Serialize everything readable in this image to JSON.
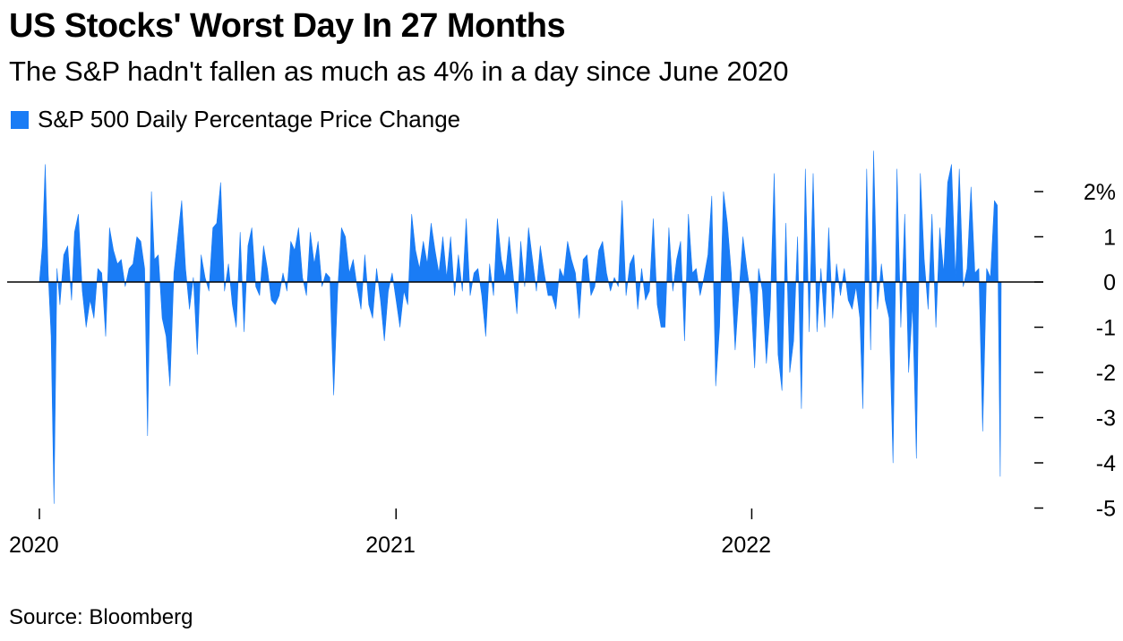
{
  "title": "US Stocks' Worst Day In 27 Months",
  "subtitle": "The S&P hadn't fallen as much as 4% in a day since June 2020",
  "source": "Source: Bloomberg",
  "colors": {
    "series": "#1a7cf5",
    "axis": "#000000"
  },
  "chart_data": {
    "type": "area",
    "title": "US Stocks' Worst Day In 27 Months",
    "subtitle": "The S&P hadn't fallen as much as 4% in a day since June 2020",
    "legend": [
      "S&P 500 Daily Percentage Price Change"
    ],
    "legend_position": "top-left",
    "grid": false,
    "y_axis_position": "right",
    "ylim": [
      -5,
      2.8
    ],
    "y_ticks": [
      2,
      1,
      0,
      -1,
      -2,
      -3,
      -4,
      -5
    ],
    "y_tick_labels": [
      "2%",
      "1",
      "0",
      "-1",
      "-2",
      "-3",
      "-4",
      "-5"
    ],
    "x_ticks": [
      "2020-01-01",
      "2021-01-01",
      "2022-01-01"
    ],
    "x_tick_labels": [
      "2020",
      "2021",
      "2022"
    ],
    "xlim": [
      "2020-01-01",
      "2022-09-14"
    ],
    "series": [
      {
        "name": "S&P 500 Daily Percentage Price Change",
        "points": [
          [
            "2020-01-01",
            0
          ],
          [
            "2020-01-04",
            0.8
          ],
          [
            "2020-01-07",
            2.6
          ],
          [
            "2020-01-10",
            0.2
          ],
          [
            "2020-01-13",
            -1.2
          ],
          [
            "2020-01-16",
            -4.9
          ],
          [
            "2020-01-19",
            0.3
          ],
          [
            "2020-01-22",
            -0.5
          ],
          [
            "2020-01-26",
            0.6
          ],
          [
            "2020-01-30",
            0.8
          ],
          [
            "2020-02-03",
            -0.4
          ],
          [
            "2020-02-06",
            1.1
          ],
          [
            "2020-02-10",
            1.5
          ],
          [
            "2020-02-14",
            -0.2
          ],
          [
            "2020-02-18",
            -1.0
          ],
          [
            "2020-02-22",
            -0.4
          ],
          [
            "2020-02-26",
            -0.8
          ],
          [
            "2020-03-01",
            0.3
          ],
          [
            "2020-03-05",
            0.2
          ],
          [
            "2020-03-09",
            -1.2
          ],
          [
            "2020-03-13",
            1.2
          ],
          [
            "2020-03-17",
            0.7
          ],
          [
            "2020-03-21",
            0.4
          ],
          [
            "2020-03-25",
            0.5
          ],
          [
            "2020-03-29",
            -0.1
          ],
          [
            "2020-04-02",
            0.3
          ],
          [
            "2020-04-06",
            0.4
          ],
          [
            "2020-04-10",
            1.0
          ],
          [
            "2020-04-14",
            0.9
          ],
          [
            "2020-04-18",
            0.3
          ],
          [
            "2020-04-21",
            -3.4
          ],
          [
            "2020-04-25",
            2.0
          ],
          [
            "2020-04-28",
            0.5
          ],
          [
            "2020-05-02",
            0.6
          ],
          [
            "2020-05-06",
            -0.8
          ],
          [
            "2020-05-10",
            -1.2
          ],
          [
            "2020-05-14",
            -2.3
          ],
          [
            "2020-05-18",
            0.2
          ],
          [
            "2020-05-22",
            1.0
          ],
          [
            "2020-05-26",
            1.8
          ],
          [
            "2020-05-30",
            0.3
          ],
          [
            "2020-06-03",
            -0.6
          ],
          [
            "2020-06-07",
            0.1
          ],
          [
            "2020-06-11",
            -1.6
          ],
          [
            "2020-06-15",
            0.6
          ],
          [
            "2020-06-19",
            0.1
          ],
          [
            "2020-06-23",
            -0.2
          ],
          [
            "2020-06-27",
            1.2
          ],
          [
            "2020-07-01",
            1.3
          ],
          [
            "2020-07-05",
            2.2
          ],
          [
            "2020-07-09",
            -0.2
          ],
          [
            "2020-07-13",
            0.4
          ],
          [
            "2020-07-17",
            -0.5
          ],
          [
            "2020-07-21",
            -1.0
          ],
          [
            "2020-07-25",
            1.1
          ],
          [
            "2020-07-29",
            -1.1
          ],
          [
            "2020-08-02",
            0.8
          ],
          [
            "2020-08-06",
            1.2
          ],
          [
            "2020-08-10",
            -0.1
          ],
          [
            "2020-08-14",
            -0.3
          ],
          [
            "2020-08-18",
            0.8
          ],
          [
            "2020-08-22",
            0.3
          ],
          [
            "2020-08-26",
            -0.4
          ],
          [
            "2020-08-30",
            -0.5
          ],
          [
            "2020-09-03",
            -0.3
          ],
          [
            "2020-09-07",
            0.2
          ],
          [
            "2020-09-11",
            -0.2
          ],
          [
            "2020-09-15",
            0.9
          ],
          [
            "2020-09-19",
            0.7
          ],
          [
            "2020-09-23",
            1.2
          ],
          [
            "2020-09-27",
            0.1
          ],
          [
            "2020-10-01",
            -0.3
          ],
          [
            "2020-10-05",
            1.1
          ],
          [
            "2020-10-09",
            0.4
          ],
          [
            "2020-10-13",
            0.9
          ],
          [
            "2020-10-17",
            -0.1
          ],
          [
            "2020-10-21",
            0.2
          ],
          [
            "2020-10-25",
            0.1
          ],
          [
            "2020-10-29",
            -2.5
          ],
          [
            "2020-11-02",
            -0.2
          ],
          [
            "2020-11-06",
            1.2
          ],
          [
            "2020-11-10",
            1.0
          ],
          [
            "2020-11-14",
            0.2
          ],
          [
            "2020-11-18",
            0.5
          ],
          [
            "2020-11-22",
            -0.1
          ],
          [
            "2020-11-26",
            -0.6
          ],
          [
            "2020-11-30",
            0.6
          ],
          [
            "2020-12-04",
            -0.5
          ],
          [
            "2020-12-08",
            -0.8
          ],
          [
            "2020-12-12",
            0.3
          ],
          [
            "2020-12-16",
            -0.4
          ],
          [
            "2020-12-20",
            -1.3
          ],
          [
            "2020-12-24",
            -0.2
          ],
          [
            "2020-12-28",
            0.2
          ],
          [
            "2021-01-01",
            -0.4
          ],
          [
            "2021-01-05",
            -1.0
          ],
          [
            "2021-01-09",
            -0.2
          ],
          [
            "2021-01-13",
            -0.5
          ],
          [
            "2021-01-17",
            1.5
          ],
          [
            "2021-01-21",
            0.7
          ],
          [
            "2021-01-25",
            0.3
          ],
          [
            "2021-01-29",
            0.9
          ],
          [
            "2021-02-02",
            0.4
          ],
          [
            "2021-02-06",
            1.3
          ],
          [
            "2021-02-10",
            0.7
          ],
          [
            "2021-02-14",
            0.2
          ],
          [
            "2021-02-18",
            1.0
          ],
          [
            "2021-02-22",
            0.1
          ],
          [
            "2021-02-26",
            1.0
          ],
          [
            "2021-03-02",
            -0.3
          ],
          [
            "2021-03-06",
            0.6
          ],
          [
            "2021-03-10",
            -0.2
          ],
          [
            "2021-03-14",
            1.4
          ],
          [
            "2021-03-18",
            -0.3
          ],
          [
            "2021-03-22",
            0.2
          ],
          [
            "2021-03-26",
            0.3
          ],
          [
            "2021-03-30",
            -0.3
          ],
          [
            "2021-04-03",
            -1.2
          ],
          [
            "2021-04-07",
            0.4
          ],
          [
            "2021-04-11",
            -0.3
          ],
          [
            "2021-04-15",
            1.4
          ],
          [
            "2021-04-19",
            0.5
          ],
          [
            "2021-04-23",
            0.1
          ],
          [
            "2021-04-27",
            1.0
          ],
          [
            "2021-05-01",
            0.2
          ],
          [
            "2021-05-05",
            -0.7
          ],
          [
            "2021-05-09",
            0.9
          ],
          [
            "2021-05-13",
            -0.1
          ],
          [
            "2021-05-17",
            1.2
          ],
          [
            "2021-05-21",
            0.5
          ],
          [
            "2021-05-25",
            -0.2
          ],
          [
            "2021-05-29",
            0.8
          ],
          [
            "2021-06-02",
            0.2
          ],
          [
            "2021-06-06",
            -0.3
          ],
          [
            "2021-06-10",
            -0.3
          ],
          [
            "2021-06-14",
            -0.6
          ],
          [
            "2021-06-18",
            0.3
          ],
          [
            "2021-06-22",
            0.1
          ],
          [
            "2021-06-26",
            0.9
          ],
          [
            "2021-06-30",
            0.5
          ],
          [
            "2021-07-04",
            0.2
          ],
          [
            "2021-07-08",
            -0.8
          ],
          [
            "2021-07-12",
            0.5
          ],
          [
            "2021-07-16",
            0.6
          ],
          [
            "2021-07-20",
            -0.3
          ],
          [
            "2021-07-24",
            -0.1
          ],
          [
            "2021-07-28",
            0.7
          ],
          [
            "2021-08-01",
            0.9
          ],
          [
            "2021-08-05",
            0.2
          ],
          [
            "2021-08-09",
            -0.2
          ],
          [
            "2021-08-13",
            0.1
          ],
          [
            "2021-08-17",
            -0.1
          ],
          [
            "2021-08-21",
            1.8
          ],
          [
            "2021-08-25",
            -0.3
          ],
          [
            "2021-08-29",
            0.4
          ],
          [
            "2021-09-02",
            0.6
          ],
          [
            "2021-09-06",
            -0.6
          ],
          [
            "2021-09-10",
            0.3
          ],
          [
            "2021-09-14",
            -0.4
          ],
          [
            "2021-09-18",
            -0.2
          ],
          [
            "2021-09-22",
            1.4
          ],
          [
            "2021-09-26",
            -0.5
          ],
          [
            "2021-09-30",
            -1.0
          ],
          [
            "2021-10-04",
            -1.0
          ],
          [
            "2021-10-08",
            1.2
          ],
          [
            "2021-10-12",
            -0.2
          ],
          [
            "2021-10-16",
            0.5
          ],
          [
            "2021-10-20",
            0.9
          ],
          [
            "2021-10-24",
            -1.3
          ],
          [
            "2021-10-28",
            1.5
          ],
          [
            "2021-11-01",
            0.2
          ],
          [
            "2021-11-05",
            0.3
          ],
          [
            "2021-11-09",
            -0.3
          ],
          [
            "2021-11-13",
            0.1
          ],
          [
            "2021-11-17",
            0.6
          ],
          [
            "2021-11-21",
            1.9
          ],
          [
            "2021-11-25",
            -2.3
          ],
          [
            "2021-11-29",
            -1.0
          ],
          [
            "2021-12-03",
            2.0
          ],
          [
            "2021-12-07",
            1.3
          ],
          [
            "2021-12-11",
            0.2
          ],
          [
            "2021-12-15",
            -1.5
          ],
          [
            "2021-12-19",
            -0.2
          ],
          [
            "2021-12-23",
            1.0
          ],
          [
            "2021-12-27",
            0.3
          ],
          [
            "2021-12-31",
            -0.3
          ],
          [
            "2022-01-04",
            -1.9
          ],
          [
            "2022-01-08",
            0.3
          ],
          [
            "2022-01-12",
            -0.2
          ],
          [
            "2022-01-16",
            -1.8
          ],
          [
            "2022-01-20",
            -0.6
          ],
          [
            "2022-01-24",
            2.4
          ],
          [
            "2022-01-28",
            -1.6
          ],
          [
            "2022-02-01",
            -2.4
          ],
          [
            "2022-02-05",
            1.3
          ],
          [
            "2022-02-09",
            -2.0
          ],
          [
            "2022-02-13",
            -1.3
          ],
          [
            "2022-02-17",
            1.0
          ],
          [
            "2022-02-21",
            -2.8
          ],
          [
            "2022-02-25",
            2.5
          ],
          [
            "2022-03-01",
            -1.1
          ],
          [
            "2022-03-05",
            2.4
          ],
          [
            "2022-03-09",
            -1.1
          ],
          [
            "2022-03-13",
            0.3
          ],
          [
            "2022-03-17",
            -1.0
          ],
          [
            "2022-03-21",
            1.2
          ],
          [
            "2022-03-25",
            -0.8
          ],
          [
            "2022-03-29",
            0.4
          ],
          [
            "2022-04-02",
            -0.3
          ],
          [
            "2022-04-06",
            0.3
          ],
          [
            "2022-04-10",
            -0.4
          ],
          [
            "2022-04-14",
            -0.6
          ],
          [
            "2022-04-18",
            -0.1
          ],
          [
            "2022-04-22",
            -0.8
          ],
          [
            "2022-04-25",
            -2.8
          ],
          [
            "2022-04-29",
            2.5
          ],
          [
            "2022-05-03",
            -1.5
          ],
          [
            "2022-05-06",
            2.9
          ],
          [
            "2022-05-10",
            -0.6
          ],
          [
            "2022-05-14",
            0.4
          ],
          [
            "2022-05-18",
            -0.4
          ],
          [
            "2022-05-22",
            -0.8
          ],
          [
            "2022-05-26",
            -4.0
          ],
          [
            "2022-05-30",
            2.5
          ],
          [
            "2022-06-03",
            -1.0
          ],
          [
            "2022-06-07",
            1.5
          ],
          [
            "2022-06-11",
            -2.0
          ],
          [
            "2022-06-15",
            -0.5
          ],
          [
            "2022-06-19",
            -3.9
          ],
          [
            "2022-06-23",
            2.4
          ],
          [
            "2022-06-27",
            0.5
          ],
          [
            "2022-07-01",
            -0.6
          ],
          [
            "2022-07-05",
            1.5
          ],
          [
            "2022-07-09",
            -1.0
          ],
          [
            "2022-07-13",
            1.2
          ],
          [
            "2022-07-17",
            0.2
          ],
          [
            "2022-07-21",
            2.2
          ],
          [
            "2022-07-25",
            2.6
          ],
          [
            "2022-07-29",
            0.1
          ],
          [
            "2022-08-02",
            2.5
          ],
          [
            "2022-08-06",
            -0.1
          ],
          [
            "2022-08-10",
            0.3
          ],
          [
            "2022-08-14",
            2.1
          ],
          [
            "2022-08-18",
            0.2
          ],
          [
            "2022-08-22",
            0.3
          ],
          [
            "2022-08-26",
            -3.3
          ],
          [
            "2022-08-30",
            0.3
          ],
          [
            "2022-09-03",
            0.1
          ],
          [
            "2022-09-07",
            1.8
          ],
          [
            "2022-09-10",
            1.7
          ],
          [
            "2022-09-13",
            -4.3
          ],
          [
            "2022-09-14",
            0
          ]
        ]
      }
    ]
  }
}
